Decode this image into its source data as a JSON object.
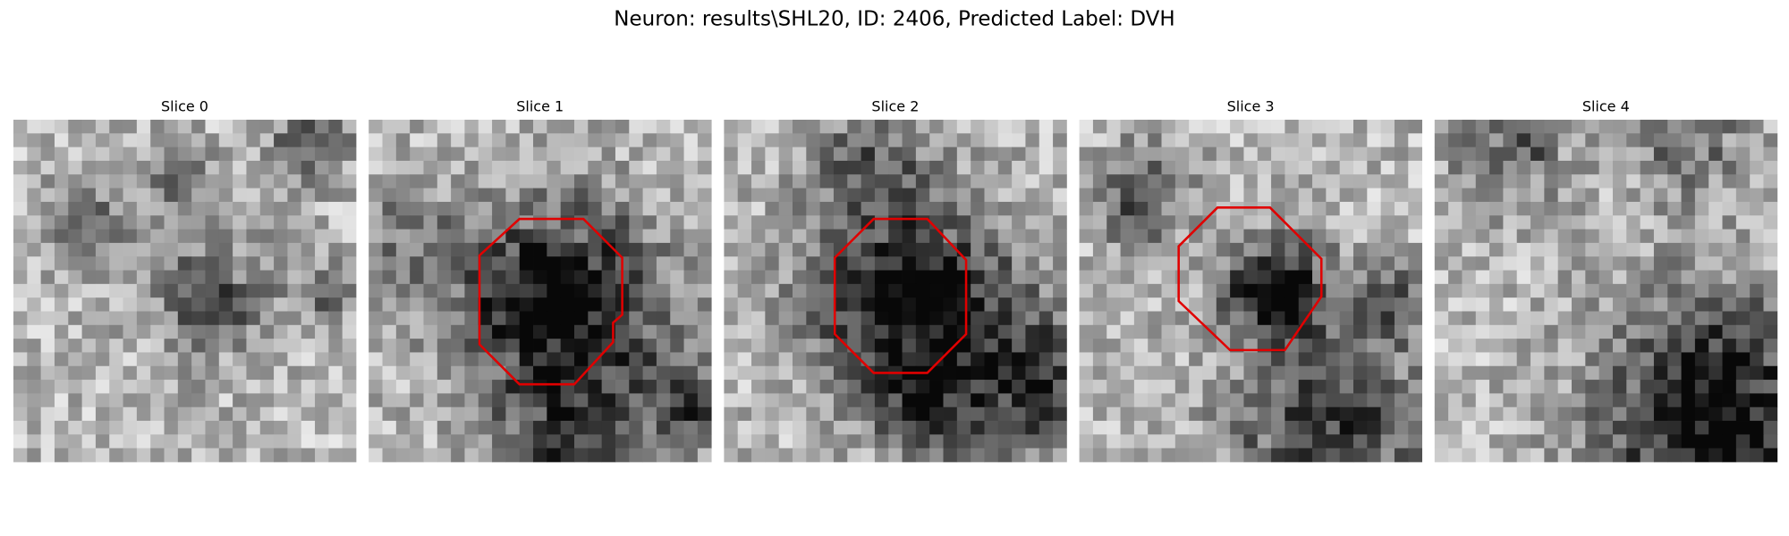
{
  "header": {
    "title": "Neuron: results\\SHL20, ID: 2406, Predicted Label: DVH"
  },
  "panels": [
    {
      "title": "Slice 0"
    },
    {
      "title": "Slice 1"
    },
    {
      "title": "Slice 2"
    },
    {
      "title": "Slice 3"
    },
    {
      "title": "Slice 4"
    }
  ]
}
